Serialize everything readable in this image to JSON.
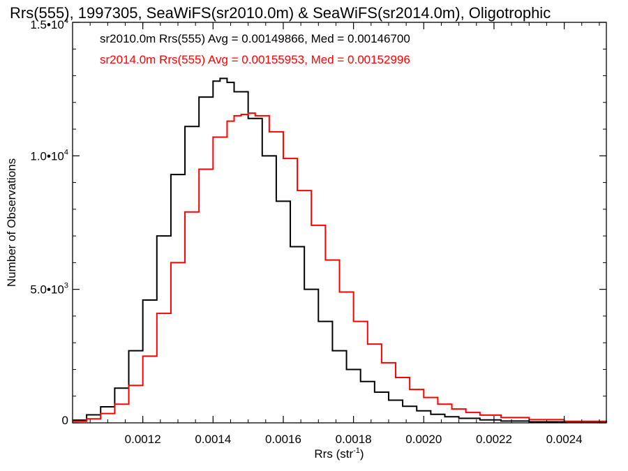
{
  "chart_data": {
    "type": "line",
    "title": "Rrs(555), 1997305, SeaWiFS(sr2010.0m) & SeaWiFS(sr2014.0m), Oligotrophic",
    "xlabel": {
      "main": "Rrs (str",
      "sup": "-1",
      "end": ")"
    },
    "ylabel": "Number of Observations",
    "xlim": [
      0.001,
      0.00252
    ],
    "ylim": [
      0,
      15000
    ],
    "x_ticks": [
      {
        "value": 0.0012,
        "label": "0.0012"
      },
      {
        "value": 0.0014,
        "label": "0.0014"
      },
      {
        "value": 0.0016,
        "label": "0.0016"
      },
      {
        "value": 0.0018,
        "label": "0.0018"
      },
      {
        "value": 0.002,
        "label": "0.0020"
      },
      {
        "value": 0.0022,
        "label": "0.0022"
      },
      {
        "value": 0.0024,
        "label": "0.0024"
      }
    ],
    "y_ticks": [
      {
        "value": 0,
        "label": "0",
        "exp": ""
      },
      {
        "value": 5000,
        "label": "5.0•10",
        "exp": "3"
      },
      {
        "value": 10000,
        "label": "1.0•10",
        "exp": "4"
      },
      {
        "value": 15000,
        "label": "1.5•10",
        "exp": "4"
      }
    ],
    "legend_placement": "top-left",
    "grid": false,
    "series": [
      {
        "name": "sr2010.0m Rrs(555)",
        "legend_text": "sr2010.0m Rrs(555) Avg = 0.00149866, Med = 0.00146700",
        "color": "#000000",
        "x": [
          0.001,
          0.00104,
          0.00108,
          0.00112,
          0.00116,
          0.0012,
          0.00124,
          0.00128,
          0.00132,
          0.00136,
          0.0014,
          0.00142,
          0.00144,
          0.00146,
          0.0015,
          0.00154,
          0.00158,
          0.00162,
          0.00166,
          0.0017,
          0.00174,
          0.00178,
          0.00182,
          0.00186,
          0.0019,
          0.00194,
          0.00198,
          0.00202,
          0.00206,
          0.0021,
          0.00216,
          0.00222,
          0.0023,
          0.0024,
          0.00252
        ],
        "y": [
          100,
          300,
          600,
          1300,
          2700,
          4600,
          7000,
          9300,
          11100,
          12200,
          12800,
          12900,
          12750,
          12400,
          11400,
          10000,
          8300,
          6600,
          5000,
          3800,
          2700,
          2000,
          1550,
          1150,
          850,
          620,
          450,
          320,
          230,
          170,
          110,
          70,
          40,
          20,
          10
        ]
      },
      {
        "name": "sr2014.0m Rrs(555)",
        "legend_text": "sr2014.0m Rrs(555) Avg = 0.00155953, Med = 0.00152996",
        "color": "#ff0000",
        "x": [
          0.001,
          0.00104,
          0.00108,
          0.00112,
          0.00116,
          0.0012,
          0.00124,
          0.00128,
          0.00132,
          0.00136,
          0.0014,
          0.00144,
          0.00146,
          0.00148,
          0.0015,
          0.00152,
          0.00156,
          0.0016,
          0.00164,
          0.00168,
          0.00172,
          0.00176,
          0.0018,
          0.00184,
          0.00188,
          0.00192,
          0.00196,
          0.002,
          0.00204,
          0.00208,
          0.00212,
          0.00216,
          0.00222,
          0.0023,
          0.0024,
          0.00252
        ],
        "y": [
          60,
          150,
          350,
          700,
          1400,
          2500,
          4100,
          6000,
          7900,
          9500,
          10700,
          11300,
          11500,
          11550,
          11600,
          11500,
          10900,
          9900,
          8700,
          7400,
          6100,
          4900,
          3800,
          2950,
          2250,
          1700,
          1250,
          950,
          700,
          520,
          390,
          290,
          200,
          120,
          60,
          30
        ]
      }
    ]
  }
}
